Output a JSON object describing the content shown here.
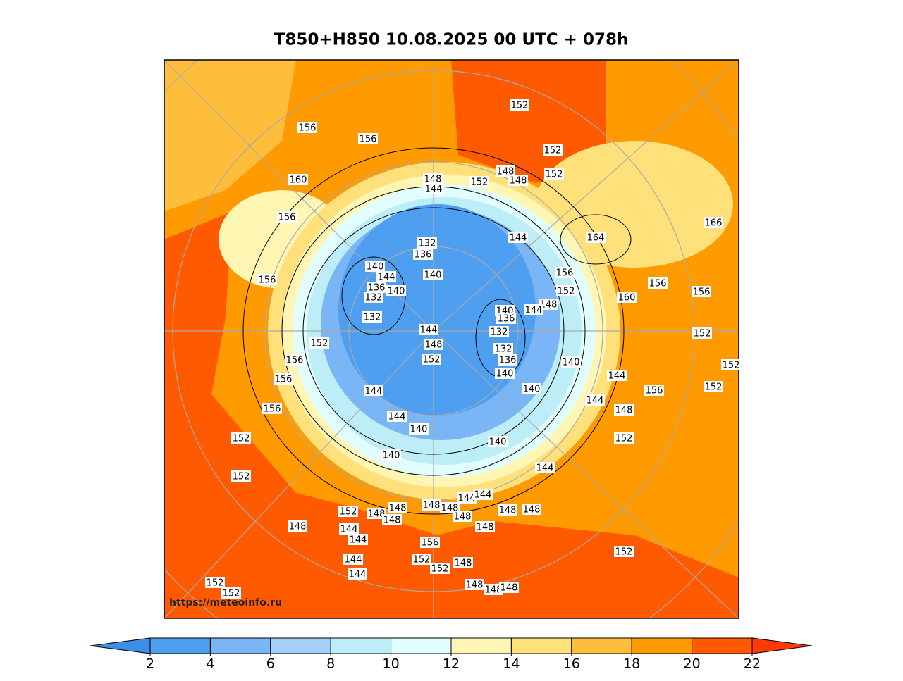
{
  "title": "T850+H850 10.08.2025 00 UTC + 078h",
  "watermark": "https://meteoinfo.ru",
  "contour_labels": [
    156,
    156,
    160,
    156,
    156,
    152,
    156,
    156,
    156,
    152,
    152,
    148,
    152,
    152,
    152,
    144,
    144,
    144,
    144,
    148,
    148,
    148,
    148,
    148,
    148,
    144,
    144,
    148,
    148,
    148,
    156,
    152,
    152,
    148,
    148,
    148,
    148,
    152,
    144,
    152,
    148,
    144,
    144,
    156,
    152,
    152,
    156,
    156,
    160,
    164,
    156,
    152,
    148,
    144,
    140,
    136,
    132,
    132,
    136,
    140,
    140,
    140,
    140,
    144,
    148,
    148,
    152,
    152,
    152,
    152,
    166,
    144,
    148,
    132,
    136,
    140,
    140,
    144,
    140,
    136,
    132,
    132,
    144,
    148,
    152,
    144,
    144,
    140,
    140,
    152
  ],
  "colorbar": {
    "ticks": [
      2,
      4,
      6,
      8,
      10,
      12,
      14,
      16,
      18,
      20,
      22
    ],
    "colors": [
      "#3d8ee6",
      "#4f9ff0",
      "#7ab6f5",
      "#a2d0f8",
      "#bdeef8",
      "#e2fdfd",
      "#fff6b4",
      "#ffe07a",
      "#ffbd3c",
      "#ff9a00",
      "#ff5a00",
      "#ff3a00"
    ]
  }
}
